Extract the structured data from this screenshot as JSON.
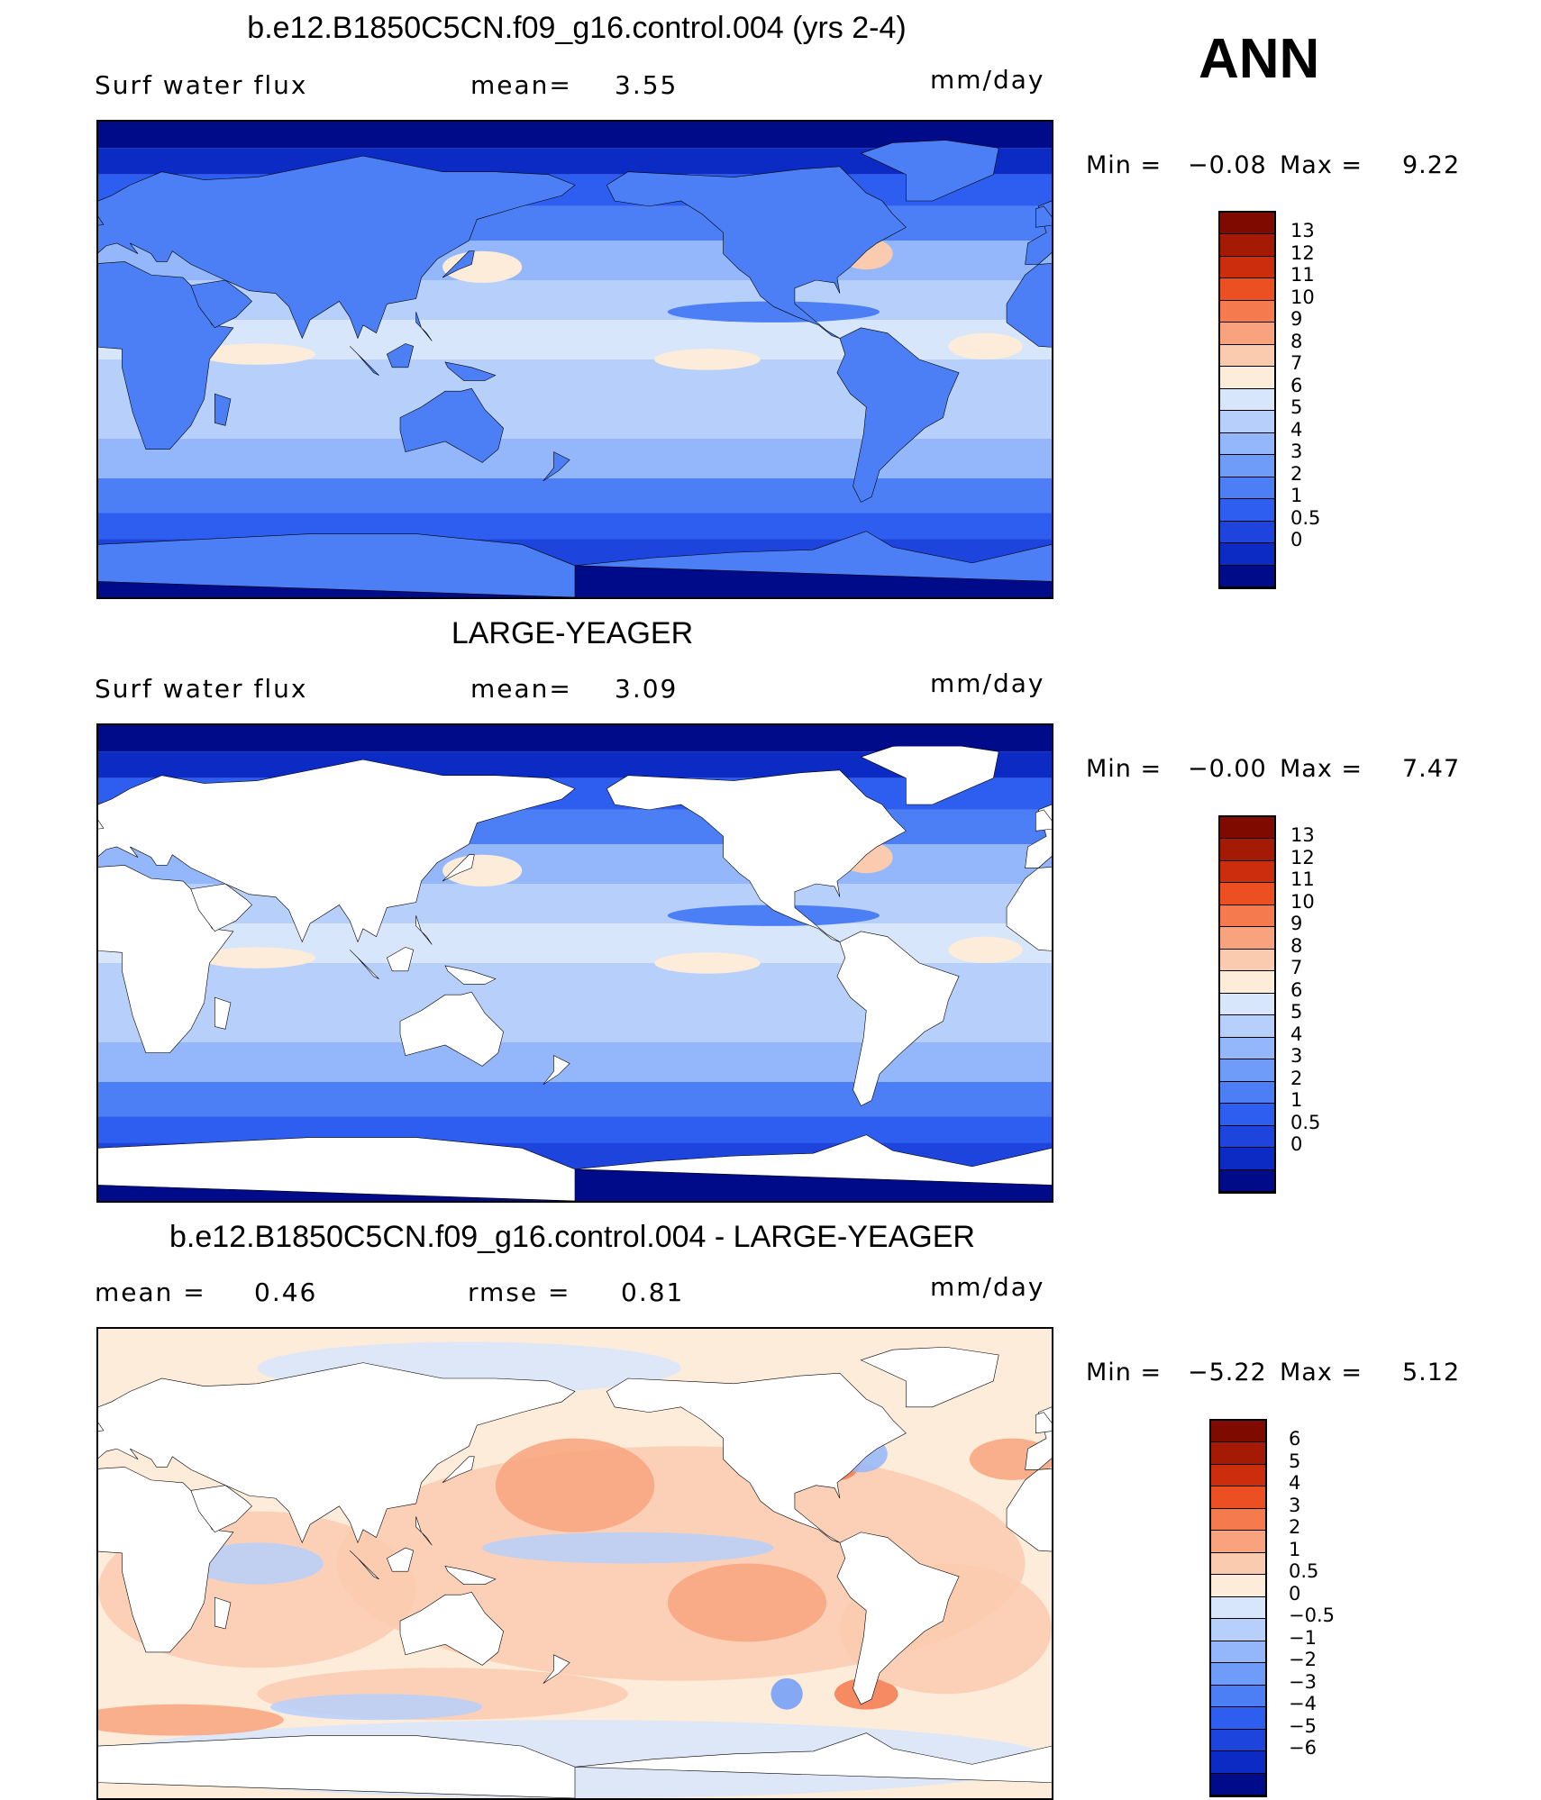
{
  "season": "ANN",
  "colors": {
    "abs_scale": [
      "#000b8a",
      "#0b2bc4",
      "#1d44dd",
      "#2e5ef0",
      "#4c7ff5",
      "#6f9cf8",
      "#93b7fa",
      "#b6cffb",
      "#d8e6fc",
      "#fdecd9",
      "#fbcbb0",
      "#f8a37e",
      "#f57a4e",
      "#ec4f22",
      "#cc2e0d",
      "#a51a05",
      "#7f0a00"
    ],
    "diff_scale": [
      "#000b8a",
      "#0b2bc4",
      "#1d44dd",
      "#2e5ef0",
      "#4c7ff5",
      "#6f9cf8",
      "#93b7fa",
      "#b6cffb",
      "#d8e6fc",
      "#fdecd9",
      "#fbcbb0",
      "#f8a37e",
      "#f57a4e",
      "#ec4f22",
      "#cc2e0d",
      "#a51a05",
      "#7f0a00"
    ],
    "land_fill": "#ffffff",
    "coast": "#000000"
  },
  "panels": [
    {
      "title": "b.e12.B1850C5CN.f09_g16.control.004 (yrs 2-4)",
      "left_label": "Surf water flux",
      "mid_label": "mean=",
      "mid_value": "3.55",
      "units": "mm/day",
      "min_label": "Min =",
      "min_value": "−0.08",
      "max_label": "Max =",
      "max_value": "9.22",
      "mode": "model",
      "colorbar_ticks": [
        "13",
        "12",
        "11",
        "10",
        "9",
        "8",
        "7",
        "6",
        "5",
        "4",
        "3",
        "2",
        "1",
        "0.5",
        "0"
      ]
    },
    {
      "title": "LARGE-YEAGER",
      "left_label": "Surf water flux",
      "mid_label": "mean=",
      "mid_value": "3.09",
      "units": "mm/day",
      "min_label": "Min =",
      "min_value": "−0.00",
      "max_label": "Max =",
      "max_value": "7.47",
      "mode": "obs",
      "colorbar_ticks": [
        "13",
        "12",
        "11",
        "10",
        "9",
        "8",
        "7",
        "6",
        "5",
        "4",
        "3",
        "2",
        "1",
        "0.5",
        "0"
      ]
    },
    {
      "title": "b.e12.B1850C5CN.f09_g16.control.004 - LARGE-YEAGER",
      "left_label": "mean =",
      "left_value": "0.46",
      "mid_label": "rmse =",
      "mid_value": "0.81",
      "units": "mm/day",
      "min_label": "Min =",
      "min_value": "−5.22",
      "max_label": "Max =",
      "max_value": "5.12",
      "mode": "diff",
      "colorbar_ticks": [
        "6",
        "5",
        "4",
        "3",
        "2",
        "1",
        "0.5",
        "0",
        "−0.5",
        "−1",
        "−2",
        "−3",
        "−4",
        "−5",
        "−6"
      ]
    }
  ]
}
